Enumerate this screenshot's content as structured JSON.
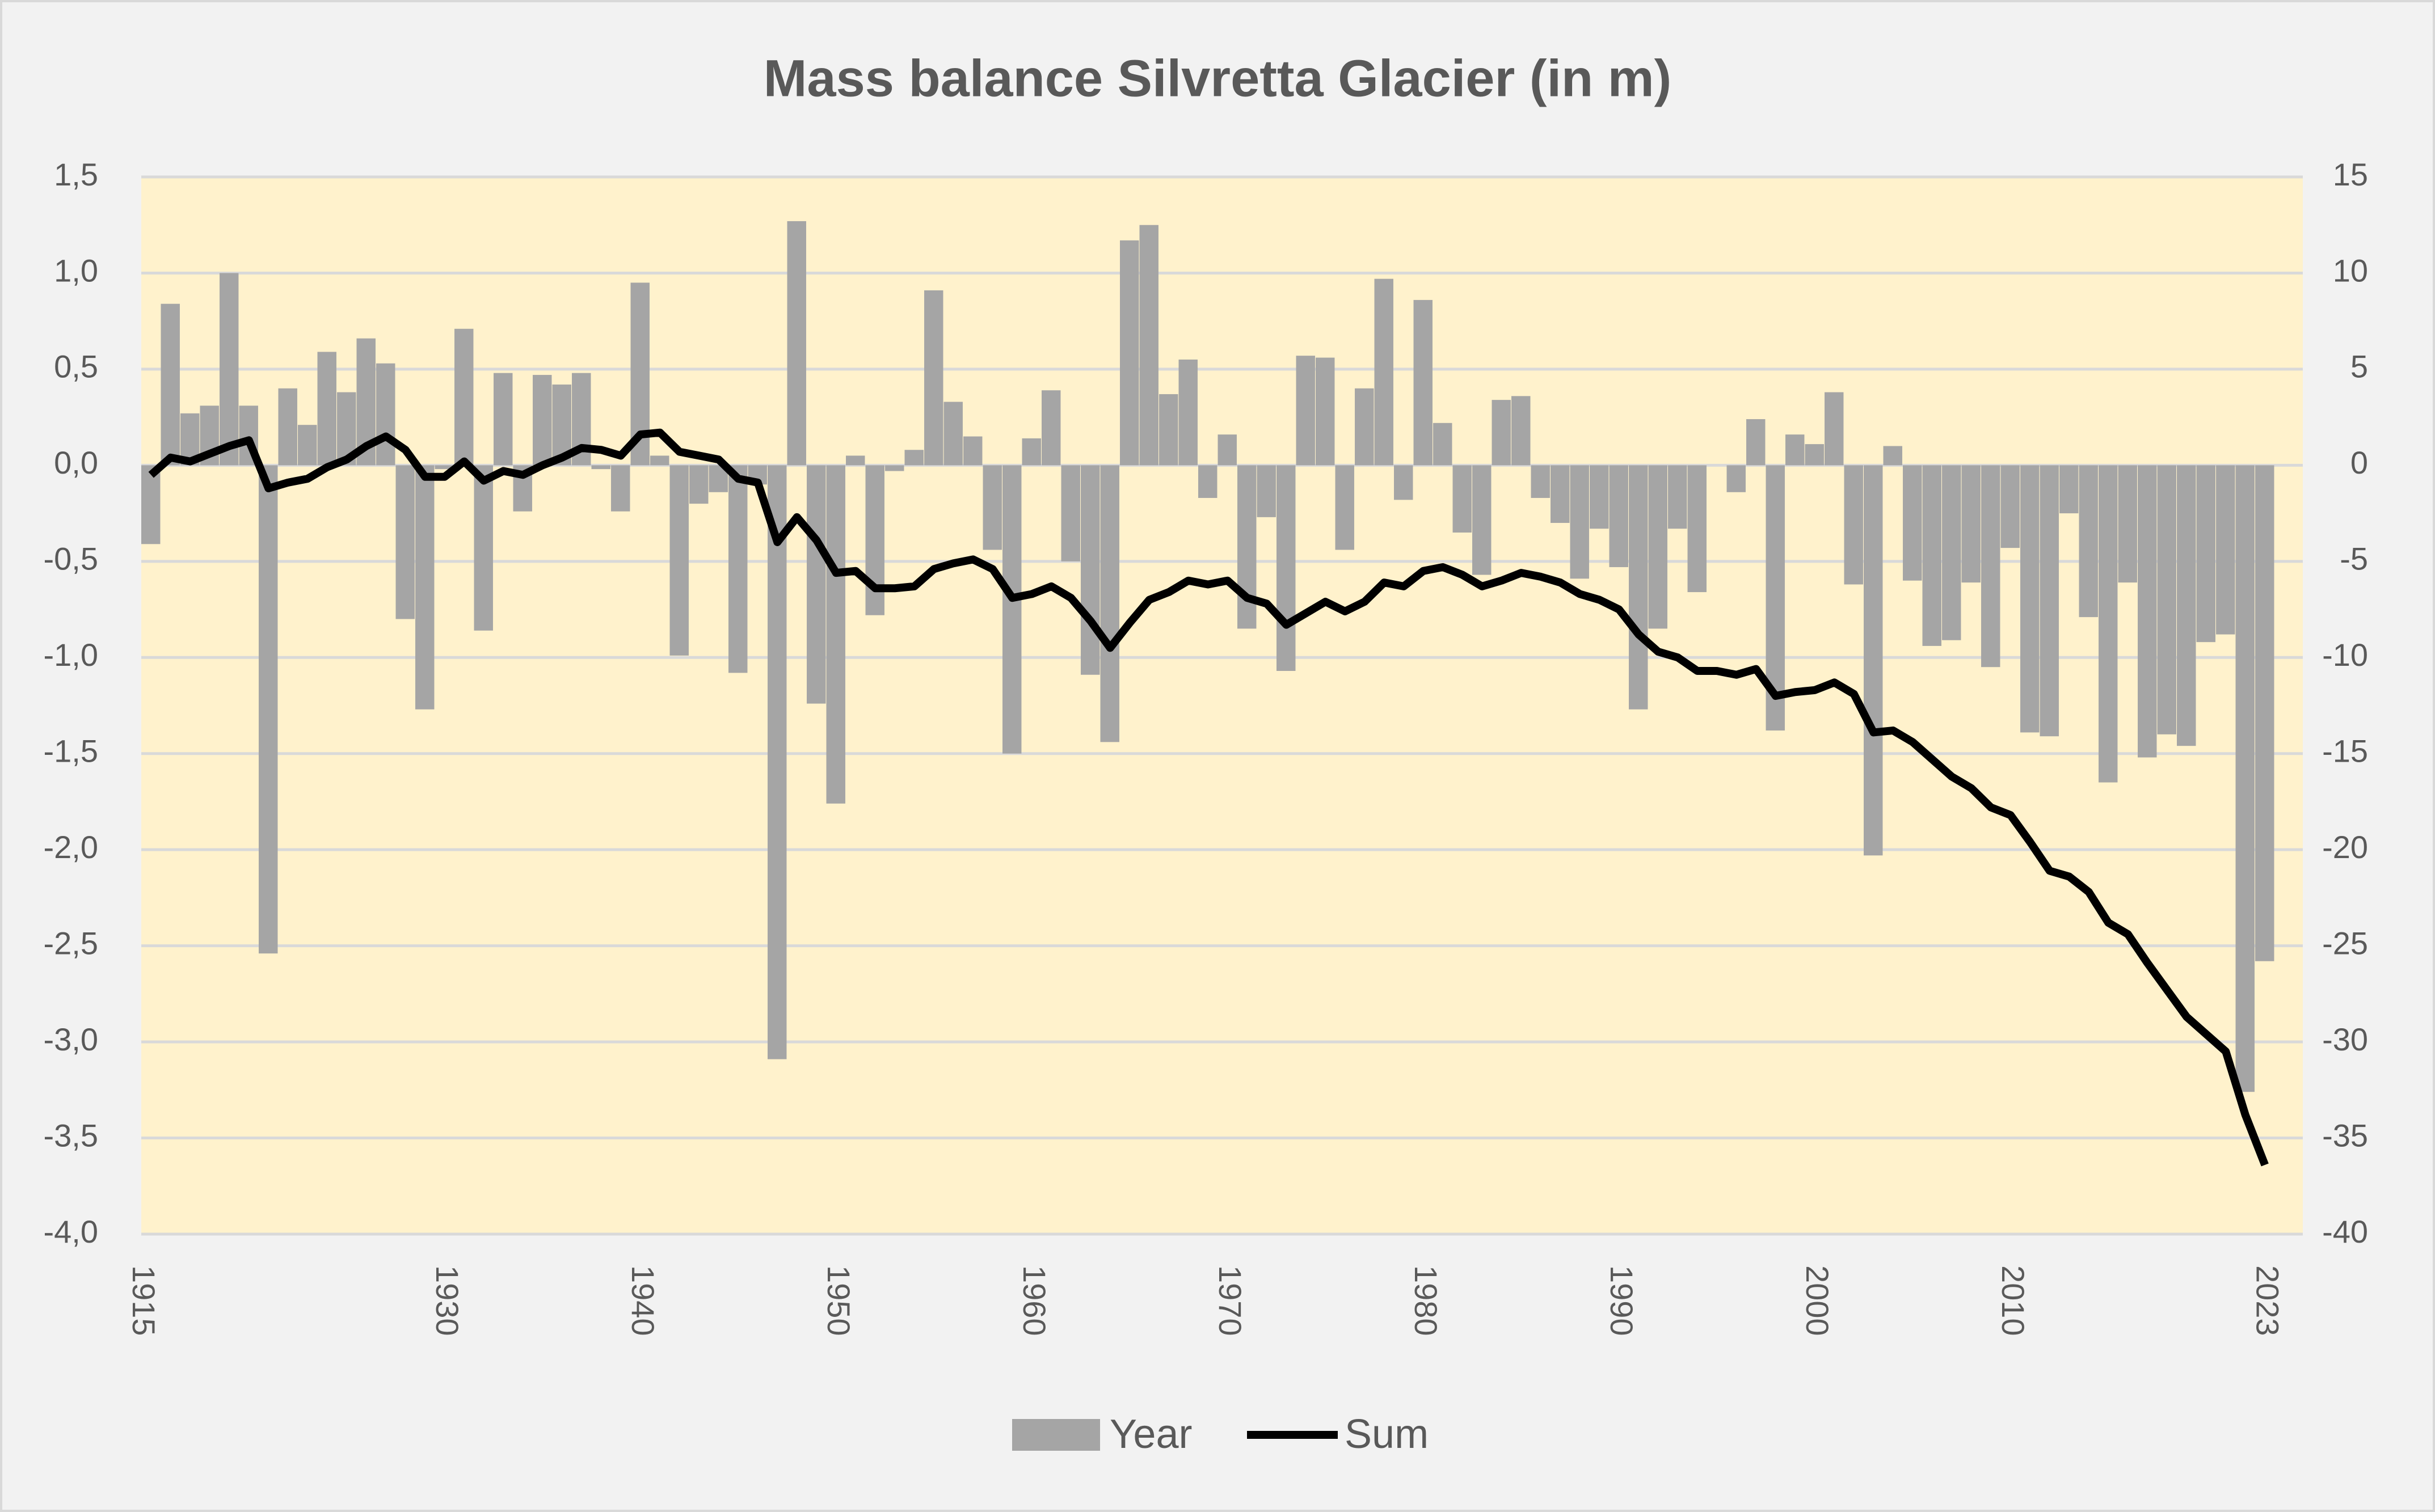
{
  "chart_data": {
    "type": "bar",
    "title": "Mass balance Silvretta Glacier (in m)",
    "categories": [
      "1915",
      null,
      null,
      null,
      null,
      null,
      null,
      null,
      null,
      null,
      null,
      null,
      null,
      null,
      null,
      "1930",
      null,
      null,
      null,
      null,
      null,
      null,
      null,
      null,
      null,
      "1940",
      null,
      null,
      null,
      null,
      null,
      null,
      null,
      null,
      null,
      "1950",
      null,
      null,
      null,
      null,
      null,
      null,
      null,
      null,
      null,
      "1960",
      null,
      null,
      null,
      null,
      null,
      null,
      null,
      null,
      null,
      "1970",
      null,
      null,
      null,
      null,
      null,
      null,
      null,
      null,
      null,
      "1980",
      null,
      null,
      null,
      null,
      null,
      null,
      null,
      null,
      null,
      "1990",
      null,
      null,
      null,
      null,
      null,
      null,
      null,
      null,
      null,
      "2000",
      null,
      null,
      null,
      null,
      null,
      null,
      null,
      null,
      null,
      "2010",
      null,
      null,
      null,
      null,
      null,
      null,
      null,
      null,
      null,
      null,
      null,
      null,
      "2023"
    ],
    "series": [
      {
        "name": "Year",
        "type": "bar",
        "color": "#a5a5a5",
        "values": [
          -0.41,
          0.84,
          0.27,
          0.31,
          1.0,
          0.31,
          -2.54,
          0.4,
          0.21,
          0.59,
          0.38,
          0.66,
          0.53,
          -0.8,
          -1.27,
          -0.02,
          0.71,
          -0.86,
          0.48,
          -0.24,
          0.47,
          0.42,
          0.48,
          -0.02,
          -0.24,
          0.95,
          0.05,
          -0.99,
          -0.2,
          -0.14,
          -1.08,
          -0.1,
          -3.09,
          1.27,
          -1.24,
          -1.76,
          0.05,
          -0.78,
          -0.03,
          0.08,
          0.91,
          0.33,
          0.15,
          -0.44,
          -1.5,
          0.14,
          0.39,
          -0.5,
          -1.09,
          -1.44,
          1.17,
          1.25,
          0.37,
          0.55,
          -0.17,
          0.16,
          -0.85,
          -0.27,
          -1.07,
          0.57,
          0.56,
          -0.44,
          0.4,
          0.97,
          -0.18,
          0.86,
          0.22,
          -0.35,
          -0.57,
          0.34,
          0.36,
          -0.17,
          -0.3,
          -0.59,
          -0.33,
          -0.53,
          -1.27,
          -0.85,
          -0.33,
          -0.66,
          0.0,
          -0.14,
          0.24,
          -1.38,
          0.16,
          0.11,
          0.38,
          -0.62,
          -2.03,
          0.1,
          -0.6,
          -0.94,
          -0.91,
          -0.61,
          -1.05,
          -0.43,
          -1.39,
          -1.41,
          -0.25,
          -0.79,
          -1.65,
          -0.61,
          -1.52,
          -1.4,
          -1.46,
          -0.92,
          -0.88,
          -3.26,
          -2.58
        ]
      },
      {
        "name": "Sum",
        "type": "line",
        "axis": "y2",
        "color": "#000000",
        "values": [
          -0.5,
          0.4,
          0.2,
          0.6,
          1.0,
          1.3,
          -1.2,
          -0.9,
          -0.7,
          -0.1,
          0.3,
          1.0,
          1.5,
          0.8,
          -0.6,
          -0.6,
          0.2,
          -0.8,
          -0.3,
          -0.5,
          0.0,
          0.4,
          0.9,
          0.8,
          0.5,
          1.6,
          1.7,
          0.7,
          0.5,
          0.3,
          -0.7,
          -0.9,
          -4.0,
          -2.7,
          -3.9,
          -5.6,
          -5.5,
          -6.4,
          -6.4,
          -6.3,
          -5.4,
          -5.1,
          -4.9,
          -5.4,
          -6.9,
          -6.7,
          -6.3,
          -6.9,
          -8.1,
          -9.5,
          -8.2,
          -7.0,
          -6.6,
          -6.0,
          -6.2,
          -6.0,
          -6.9,
          -7.2,
          -8.3,
          -7.7,
          -7.1,
          -7.6,
          -7.1,
          -6.1,
          -6.3,
          -5.5,
          -5.3,
          -5.7,
          -6.3,
          -6.0,
          -5.6,
          -5.8,
          -6.1,
          -6.7,
          -7.0,
          -7.5,
          -8.8,
          -9.7,
          -10.0,
          -10.7,
          -10.7,
          -10.9,
          -10.6,
          -12.0,
          -11.8,
          -11.7,
          -11.3,
          -11.9,
          -13.9,
          -13.8,
          -14.4,
          -15.3,
          -16.2,
          -16.8,
          -17.8,
          -18.2,
          -19.6,
          -21.1,
          -21.4,
          -22.2,
          -23.8,
          -24.4,
          -25.9,
          -27.3,
          -28.7,
          -29.6,
          -30.5,
          -33.8,
          -36.4
        ]
      }
    ],
    "ylim": [
      -4,
      1.5
    ],
    "yticks": [
      {
        "value": -4,
        "label": "-4,0"
      },
      {
        "value": -3.5,
        "label": "-3,5"
      },
      {
        "value": -3,
        "label": "-3,0"
      },
      {
        "value": -2.5,
        "label": "-2,5"
      },
      {
        "value": -2,
        "label": "-2,0"
      },
      {
        "value": -1.5,
        "label": "-1,5"
      },
      {
        "value": -1,
        "label": "-1,0"
      },
      {
        "value": -0.5,
        "label": "-0,5"
      },
      {
        "value": 0,
        "label": "0,0"
      },
      {
        "value": 0.5,
        "label": "0,5"
      },
      {
        "value": 1,
        "label": "1,0"
      },
      {
        "value": 1.5,
        "label": "1,5"
      }
    ],
    "y2lim": [
      -40,
      15
    ],
    "y2ticks": [
      -40,
      -35,
      -30,
      -25,
      -20,
      -15,
      -10,
      -5,
      0,
      5,
      10,
      15
    ],
    "grid": true,
    "legend": "bottom"
  }
}
